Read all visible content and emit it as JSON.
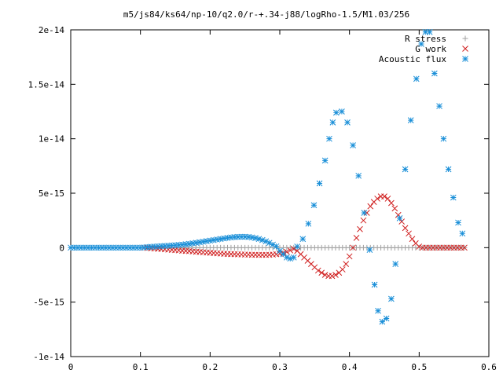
{
  "chart_data": {
    "type": "scatter",
    "title": "m5/js84/ks64/np-10/q2.0/r-+.34-j88/logRho-1.5/M1.03/256",
    "xlabel": "",
    "ylabel": "",
    "xlim": [
      0,
      0.6
    ],
    "ylim": [
      -1e-14,
      2e-14
    ],
    "xticks": [
      0,
      0.1,
      0.2,
      0.3,
      0.4,
      0.5,
      0.6
    ],
    "xtick_labels": [
      "0",
      "0.1",
      "0.2",
      "0.3",
      "0.4",
      "0.5",
      "0.6"
    ],
    "yticks": [
      -1e-14,
      -5e-15,
      0,
      5e-15,
      1e-14,
      1.5e-14,
      2e-14
    ],
    "ytick_labels": [
      "-1e-14",
      "-5e-15",
      "0",
      "5e-15",
      "1e-14",
      "1.5e-14",
      "2e-14"
    ],
    "grid": false,
    "legend_position": "top-right",
    "series": [
      {
        "name": "R stress",
        "marker": "plus",
        "color": "#a0a0a0",
        "x": [
          0.11,
          0.115,
          0.12,
          0.125,
          0.13,
          0.135,
          0.14,
          0.145,
          0.15,
          0.155,
          0.16,
          0.165,
          0.17,
          0.175,
          0.18,
          0.185,
          0.19,
          0.195,
          0.2,
          0.205,
          0.21,
          0.215,
          0.22,
          0.225,
          0.23,
          0.235,
          0.24,
          0.245,
          0.25,
          0.255,
          0.26,
          0.265,
          0.27,
          0.275,
          0.28,
          0.285,
          0.29,
          0.295,
          0.3,
          0.305,
          0.31,
          0.315,
          0.32,
          0.325,
          0.33,
          0.335,
          0.34,
          0.345,
          0.35,
          0.355,
          0.36,
          0.365,
          0.37,
          0.375,
          0.38,
          0.385,
          0.39,
          0.395,
          0.4,
          0.405,
          0.41,
          0.415,
          0.42,
          0.425,
          0.43,
          0.435,
          0.44,
          0.445,
          0.45,
          0.455,
          0.46,
          0.465,
          0.47,
          0.475,
          0.48,
          0.485,
          0.49,
          0.495,
          0.5,
          0.505,
          0.51,
          0.515,
          0.52,
          0.525,
          0.53,
          0.535,
          0.54,
          0.545,
          0.55,
          0.555,
          0.56,
          0.565
        ],
        "y": [
          0,
          0,
          0,
          0,
          0,
          0,
          0,
          0,
          0,
          0,
          0,
          0,
          0,
          0,
          0,
          0,
          0,
          0,
          0,
          0,
          0,
          0,
          0,
          0,
          0,
          0,
          0,
          0,
          0,
          0,
          0,
          0,
          0,
          0,
          0,
          0,
          0,
          0,
          0,
          0,
          0,
          0,
          0,
          0,
          0,
          0,
          0,
          0,
          0,
          0,
          0,
          0,
          0,
          0,
          0,
          0,
          0,
          0,
          0,
          0,
          0,
          0,
          0,
          0,
          0,
          0,
          0,
          0,
          0,
          0,
          0,
          0,
          0,
          0,
          0,
          0,
          0,
          0,
          0,
          0,
          0,
          0,
          0,
          0,
          0,
          0,
          0,
          0,
          0,
          0,
          0,
          0
        ]
      },
      {
        "name": "G work",
        "marker": "cross",
        "color": "#d02020",
        "x": [
          0.105,
          0.11,
          0.115,
          0.12,
          0.125,
          0.13,
          0.135,
          0.14,
          0.145,
          0.15,
          0.155,
          0.16,
          0.165,
          0.17,
          0.175,
          0.18,
          0.185,
          0.19,
          0.195,
          0.2,
          0.205,
          0.21,
          0.215,
          0.22,
          0.225,
          0.23,
          0.235,
          0.24,
          0.245,
          0.25,
          0.255,
          0.26,
          0.265,
          0.27,
          0.275,
          0.28,
          0.285,
          0.29,
          0.295,
          0.3,
          0.305,
          0.31,
          0.315,
          0.32,
          0.325,
          0.33,
          0.335,
          0.34,
          0.345,
          0.35,
          0.355,
          0.36,
          0.365,
          0.37,
          0.375,
          0.38,
          0.385,
          0.39,
          0.395,
          0.4,
          0.405,
          0.41,
          0.415,
          0.42,
          0.425,
          0.43,
          0.435,
          0.44,
          0.445,
          0.45,
          0.455,
          0.46,
          0.465,
          0.47,
          0.475,
          0.48,
          0.485,
          0.49,
          0.495,
          0.5,
          0.505,
          0.51,
          0.515,
          0.52,
          0.525,
          0.53,
          0.535,
          0.54,
          0.545,
          0.55,
          0.555,
          0.56,
          0.565
        ],
        "y": [
          0,
          -2e-17,
          -5e-17,
          -8e-17,
          -1e-16,
          -1.2e-16,
          -1.5e-16,
          -1.8e-16,
          -2e-16,
          -2.2e-16,
          -2.5e-16,
          -2.8e-16,
          -3e-16,
          -3.2e-16,
          -3.5e-16,
          -3.8e-16,
          -4e-16,
          -4.3e-16,
          -4.5e-16,
          -4.7e-16,
          -5e-16,
          -5.2e-16,
          -5.4e-16,
          -5.6e-16,
          -5.8e-16,
          -5.9e-16,
          -6e-16,
          -6.1e-16,
          -6.2e-16,
          -6.3e-16,
          -6.4e-16,
          -6.5e-16,
          -6.5e-16,
          -6.6e-16,
          -6.6e-16,
          -6.6e-16,
          -6.5e-16,
          -6.3e-16,
          -6e-16,
          -5.5e-16,
          -4.8e-16,
          -3.8e-16,
          -2.5e-16,
          -1e-16,
          -3e-16,
          -6e-16,
          -9e-16,
          -1.2e-15,
          -1.5e-15,
          -1.8e-15,
          -2.1e-15,
          -2.3e-15,
          -2.5e-15,
          -2.6e-15,
          -2.6e-15,
          -2.5e-15,
          -2.3e-15,
          -2e-15,
          -1.5e-15,
          -8e-16,
          0,
          9e-16,
          1.7e-15,
          2.5e-15,
          3.2e-15,
          3.8e-15,
          4.2e-15,
          4.5e-15,
          4.7e-15,
          4.7e-15,
          4.5e-15,
          4.1e-15,
          3.6e-15,
          3e-15,
          2.4e-15,
          1.8e-15,
          1.3e-15,
          8e-16,
          4e-16,
          1e-16,
          0,
          0,
          0,
          0,
          0,
          0,
          0,
          0,
          0,
          0,
          0,
          0,
          0
        ]
      },
      {
        "name": "Acoustic flux",
        "marker": "star",
        "color": "#1a8fd8",
        "x": [
          0,
          0.005,
          0.01,
          0.015,
          0.02,
          0.025,
          0.03,
          0.035,
          0.04,
          0.045,
          0.05,
          0.055,
          0.06,
          0.065,
          0.07,
          0.075,
          0.08,
          0.085,
          0.09,
          0.095,
          0.1,
          0.105,
          0.11,
          0.115,
          0.12,
          0.125,
          0.13,
          0.135,
          0.14,
          0.145,
          0.15,
          0.155,
          0.16,
          0.165,
          0.17,
          0.175,
          0.18,
          0.185,
          0.19,
          0.195,
          0.2,
          0.205,
          0.21,
          0.215,
          0.22,
          0.225,
          0.23,
          0.235,
          0.24,
          0.245,
          0.25,
          0.255,
          0.26,
          0.265,
          0.27,
          0.275,
          0.28,
          0.285,
          0.29,
          0.295,
          0.3,
          0.305,
          0.31,
          0.315,
          0.32,
          0.325,
          0.333,
          0.341,
          0.349,
          0.357,
          0.365,
          0.371,
          0.376,
          0.381,
          0.389,
          0.397,
          0.405,
          0.413,
          0.421,
          0.429,
          0.436,
          0.441,
          0.447,
          0.453,
          0.46,
          0.466,
          0.472,
          0.48,
          0.488,
          0.496,
          0.503,
          0.509,
          0.515,
          0.522,
          0.529,
          0.535,
          0.542,
          0.549,
          0.556,
          0.562
        ],
        "y": [
          0,
          0,
          0,
          0,
          0,
          0,
          0,
          0,
          0,
          0,
          0,
          0,
          0,
          0,
          0,
          0,
          0,
          0,
          0,
          0,
          0,
          2e-17,
          5e-17,
          8e-17,
          1e-16,
          1.2e-16,
          1.4e-16,
          1.6e-16,
          1.8e-16,
          2e-16,
          2.2e-16,
          2.5e-16,
          2.8e-16,
          3.1e-16,
          3.5e-16,
          4e-16,
          4.5e-16,
          5e-16,
          5.5e-16,
          6e-16,
          6.5e-16,
          7e-16,
          7.5e-16,
          8e-16,
          8.5e-16,
          9e-16,
          9.4e-16,
          9.7e-16,
          9.9e-16,
          1e-15,
          1e-15,
          9.8e-16,
          9.4e-16,
          8.8e-16,
          8e-16,
          7e-16,
          5.8e-16,
          4.4e-16,
          2.8e-16,
          1.2e-16,
          -3e-16,
          -6e-16,
          -9e-16,
          -1e-15,
          -9e-16,
          1e-16,
          8e-16,
          2.2e-15,
          3.9e-15,
          5.9e-15,
          8e-15,
          1e-14,
          1.15e-14,
          1.24e-14,
          1.25e-14,
          1.15e-14,
          9.4e-15,
          6.6e-15,
          3.2e-15,
          -2e-16,
          -3.4e-15,
          -5.8e-15,
          -6.8e-15,
          -6.5e-15,
          -4.7e-15,
          -1.5e-15,
          2.7e-15,
          7.2e-15,
          1.17e-14,
          1.55e-14,
          1.87e-14,
          1.98e-14,
          1.98e-14,
          1.6e-14,
          1.3e-14,
          1e-14,
          7.2e-15,
          4.6e-15,
          2.3e-15,
          1.3e-15
        ]
      }
    ]
  }
}
